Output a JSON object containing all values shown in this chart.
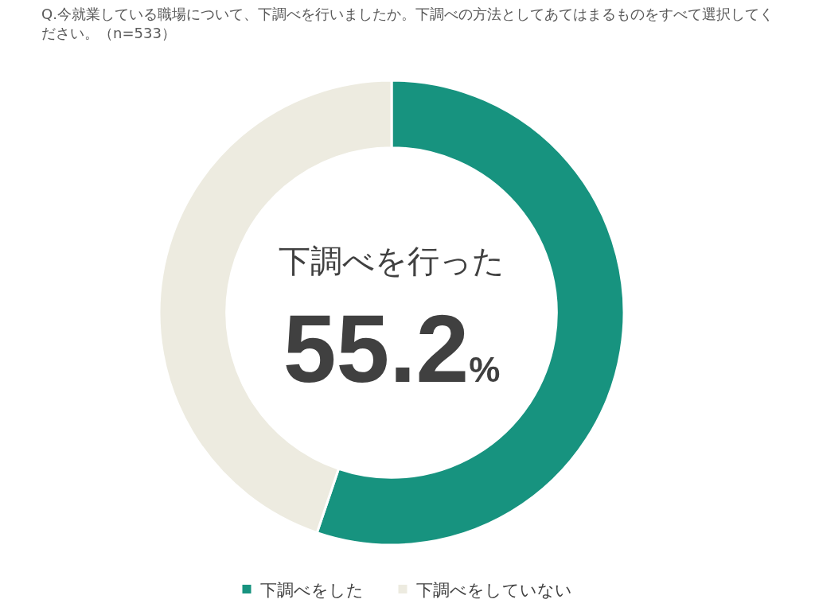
{
  "chart_data": {
    "type": "donut",
    "title": "Q.今就業している職場について、下調べを行いましたか。下調べの方法としてあてはまるものをすべて選択してください。（n=533）",
    "categories": [
      "下調べをした",
      "下調べをしていない"
    ],
    "values": [
      55.2,
      44.8
    ],
    "colors": [
      "#17937f",
      "#edebe0"
    ],
    "value_labels": [
      "55.2%",
      null
    ],
    "annotations": [
      "下調べを行った"
    ],
    "legend": "bottom"
  }
}
